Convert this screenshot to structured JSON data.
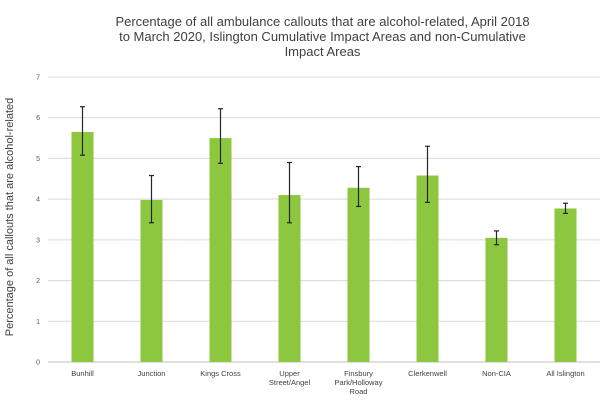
{
  "chart_data": {
    "type": "bar",
    "title": [
      "Percentage of all ambulance callouts that are alcohol-related, April 2018",
      "to March 2020, Islington Cumulative Impact Areas and non-Cumulative",
      "Impact Areas"
    ],
    "xlabel": "",
    "ylabel": "Percentage of all callouts that are alcohol-related",
    "ylim": [
      0,
      7
    ],
    "yticks": [
      "0",
      "1",
      "2",
      "3",
      "4",
      "5",
      "6",
      "7"
    ],
    "grid": true,
    "categories": [
      [
        "Bunhill"
      ],
      [
        "Junction"
      ],
      [
        "Kings Cross"
      ],
      [
        "Upper",
        "Street/Angel"
      ],
      [
        "Finsbury",
        "Park/Holloway",
        "Road"
      ],
      [
        "Clerkenwell"
      ],
      [
        "Non-CIA"
      ],
      [
        "All Islington"
      ]
    ],
    "values": [
      5.65,
      3.98,
      5.5,
      4.1,
      4.28,
      4.58,
      3.05,
      3.77
    ],
    "error_low": [
      5.08,
      3.42,
      4.88,
      3.42,
      3.82,
      3.92,
      2.88,
      3.65
    ],
    "error_high": [
      6.27,
      4.58,
      6.22,
      4.9,
      4.8,
      5.3,
      3.22,
      3.9
    ],
    "colors": {
      "bar": "#8dc63f",
      "error": "#262626",
      "grid": "#d9d9d9",
      "axis": "#bfbfbf"
    }
  }
}
